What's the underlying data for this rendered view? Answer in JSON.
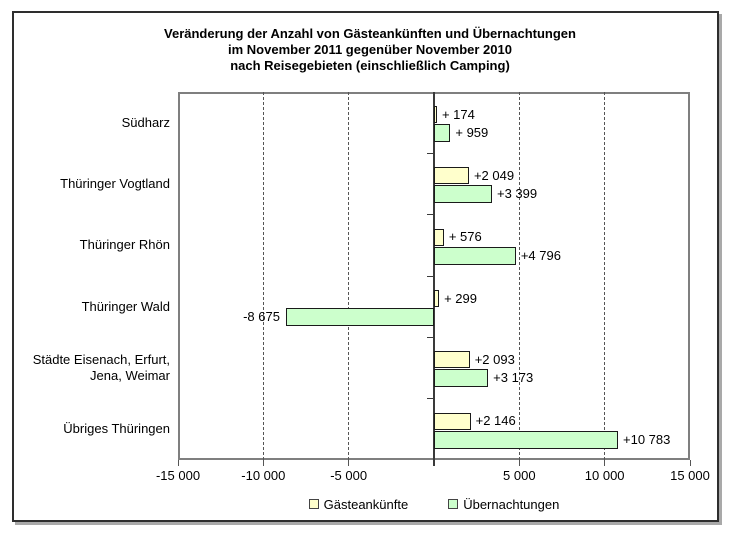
{
  "chart_data": {
    "type": "bar",
    "orientation": "horizontal",
    "title": "Veränderung der Anzahl von Gästeankünften und Übernachtungen\nim November 2011 gegenüber November 2010\nnach Reisegebieten (einschließlich Camping)",
    "categories": [
      "Südharz",
      "Thüringer Vogtland",
      "Thüringer Rhön",
      "Thüringer Wald",
      "Städte Eisenach, Erfurt, Jena, Weimar",
      "Übriges Thüringen"
    ],
    "series": [
      {
        "name": "Gästeankünfte",
        "color": "#FFFFCC",
        "values": [
          174,
          2049,
          576,
          299,
          2093,
          2146
        ],
        "labels": [
          "+ 174",
          "+2 049",
          "+ 576",
          "+ 299",
          "+2 093",
          "+2 146"
        ]
      },
      {
        "name": "Übernachtungen",
        "color": "#CCFFCC",
        "values": [
          959,
          3399,
          4796,
          -8675,
          3173,
          10783
        ],
        "labels": [
          "+ 959",
          "+3 399",
          "+4 796",
          "-8 675",
          "+3 173",
          "+10 783"
        ]
      }
    ],
    "xlim": [
      -15000,
      15000
    ],
    "x_tick_step": 5000,
    "x_ticks": [
      -15000,
      -10000,
      -5000,
      0,
      5000,
      10000,
      15000
    ],
    "x_tick_labels": [
      "-15 000",
      "-10 000",
      "-5 000",
      "",
      "5 000",
      "10 000",
      "15 000"
    ],
    "grid": "vertical dashed lines every 5000, none at zero",
    "legend_position": "bottom-center",
    "colors": {
      "bar_border": "#1a1a1a",
      "plot_border": "#7f7f7f",
      "gridline": "#555555",
      "zero_axis": "#3a3a3a",
      "outer_frame": "#2e2e2e",
      "background": "#ffffff"
    }
  }
}
